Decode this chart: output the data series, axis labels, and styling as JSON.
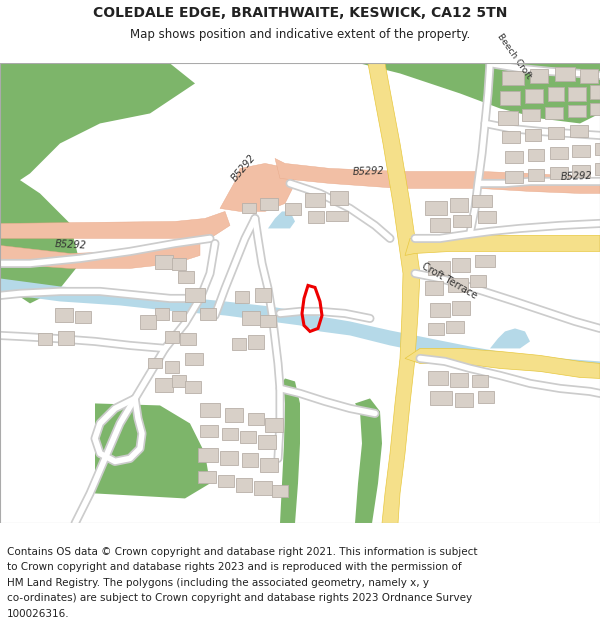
{
  "title_line1": "COLEDALE EDGE, BRAITHWAITE, KESWICK, CA12 5TN",
  "title_line2": "Map shows position and indicative extent of the property.",
  "footer_lines": [
    "Contains OS data © Crown copyright and database right 2021. This information is subject",
    "to Crown copyright and database rights 2023 and is reproduced with the permission of",
    "HM Land Registry. The polygons (including the associated geometry, namely x, y",
    "co-ordinates) are subject to Crown copyright and database rights 2023 Ordnance Survey",
    "100026316."
  ],
  "map_bg": "#f7f5f2",
  "road_major_color": "#f2bfa5",
  "road_minor_color": "#ffffff",
  "road_border_color": "#cccccc",
  "water_color": "#b5d9e8",
  "green_color": "#7db56a",
  "building_color": "#d8d0c8",
  "building_border": "#b8b0a8",
  "road_yellow_color": "#f5e08a",
  "road_yellow_border": "#e8c840",
  "property_color": "#ee0000",
  "text_color": "#222222",
  "label_color": "#333333",
  "title_fontsize": 10,
  "subtitle_fontsize": 8.5,
  "footer_fontsize": 7.5
}
